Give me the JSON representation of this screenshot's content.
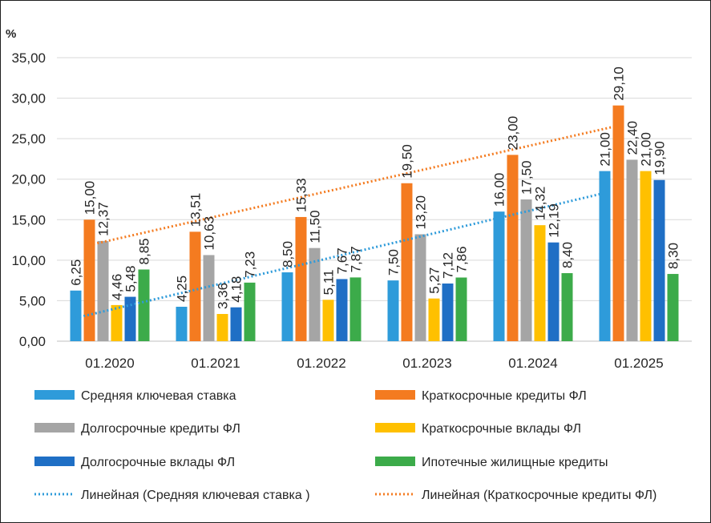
{
  "chart_data": {
    "type": "bar",
    "unit_label": "%",
    "categories": [
      "01.2020",
      "01.2021",
      "01.2022",
      "01.2023",
      "01.2024",
      "01.2025"
    ],
    "ylim": [
      0,
      35
    ],
    "yticks": [
      "0,00",
      "5,00",
      "10,00",
      "15,00",
      "20,00",
      "25,00",
      "30,00",
      "35,00"
    ],
    "grid": true,
    "legend_position": "bottom",
    "series": [
      {
        "name": "Средняя ключевая ставка",
        "color": "#2E9BDA",
        "values": [
          6.25,
          4.25,
          8.5,
          7.5,
          16.0,
          21.0
        ],
        "labels": [
          "6,25",
          "4,25",
          "8,50",
          "7,50",
          "16,00",
          "21,00"
        ]
      },
      {
        "name": "Краткосрочные кредиты ФЛ",
        "color": "#F47B20",
        "values": [
          15.0,
          13.51,
          15.33,
          19.5,
          23.0,
          29.1
        ],
        "labels": [
          "15,00",
          "13,51",
          "15,33",
          "19,50",
          "23,00",
          "29,10"
        ]
      },
      {
        "name": "Долгосрочные кредиты ФЛ",
        "color": "#A5A5A5",
        "values": [
          12.37,
          10.63,
          11.5,
          13.2,
          17.5,
          22.4
        ],
        "labels": [
          "12,37",
          "10,63",
          "11,50",
          "13,20",
          "17,50",
          "22,40"
        ]
      },
      {
        "name": "Краткосрочные вклады ФЛ",
        "color": "#FFC000",
        "values": [
          4.46,
          3.36,
          5.11,
          5.27,
          14.32,
          21.0
        ],
        "labels": [
          "4,46",
          "3,36",
          "5,11",
          "5,27",
          "14,32",
          "21,00"
        ]
      },
      {
        "name": "Долгосрочные вклады ФЛ",
        "color": "#1F6FC5",
        "values": [
          5.48,
          4.18,
          7.67,
          7.12,
          12.19,
          19.9
        ],
        "labels": [
          "5,48",
          "4,18",
          "7,67",
          "7,12",
          "12,19",
          "19,90"
        ]
      },
      {
        "name": "Ипотечные жилищные кредиты",
        "color": "#3CAB4A",
        "values": [
          8.85,
          7.23,
          7.87,
          7.86,
          8.4,
          8.3
        ],
        "labels": [
          "8,85",
          "7,23",
          "7,87",
          "7,86",
          "8,40",
          "8,30"
        ]
      }
    ],
    "trendlines": [
      {
        "name": "Линейная (Средняя ключевая ставка )",
        "color": "#2E9BDA",
        "series_index": 0
      },
      {
        "name": "Линейная (Краткосрочные кредиты ФЛ)",
        "color": "#F47B20",
        "series_index": 1
      }
    ]
  }
}
